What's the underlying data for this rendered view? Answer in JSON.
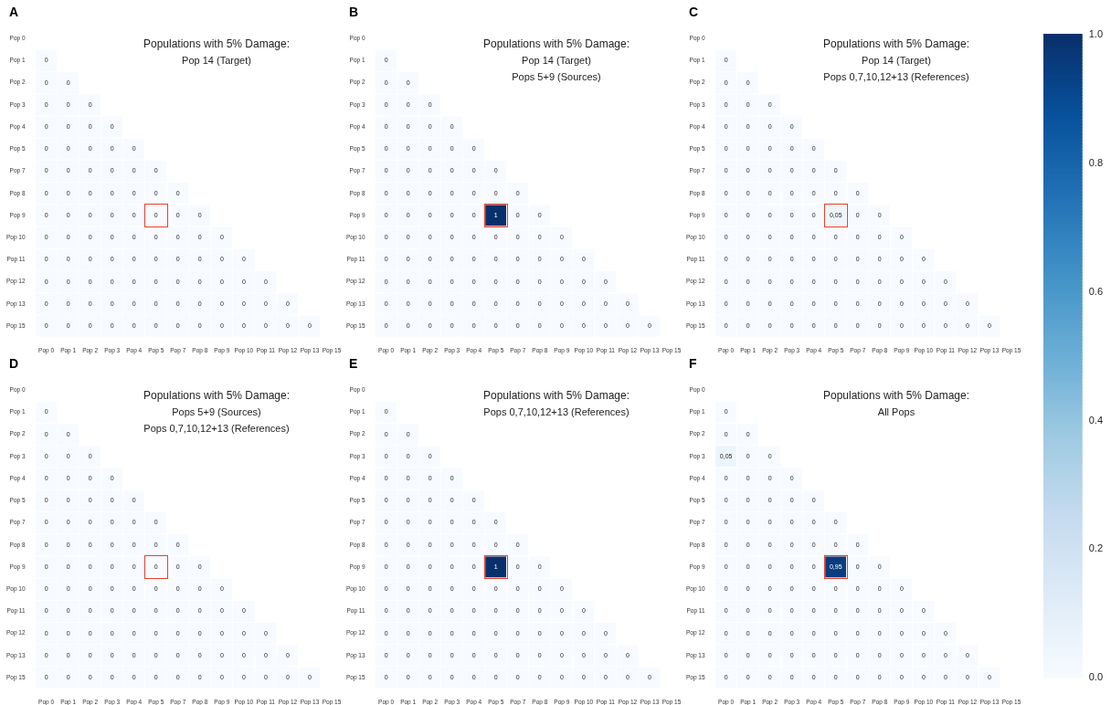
{
  "chart_data": [
    {
      "type": "heatmap",
      "annotations": [
        "A"
      ],
      "title": "Populations with 5% Damage:",
      "subtitle": "Pop 14 (Target)",
      "categories": [
        "Pop 0",
        "Pop 1",
        "Pop 2",
        "Pop 3",
        "Pop 4",
        "Pop 5",
        "Pop 7",
        "Pop 8",
        "Pop 9",
        "Pop 10",
        "Pop 11",
        "Pop 12",
        "Pop 13",
        "Pop 15"
      ],
      "y_categories": [
        "Pop 0",
        "Pop 1",
        "Pop 2",
        "Pop 3",
        "Pop 4",
        "Pop 5",
        "Pop 7",
        "Pop 8",
        "Pop 9",
        "Pop 10",
        "Pop 11",
        "Pop 12",
        "Pop 13",
        "Pop 15"
      ],
      "data_labels": true,
      "cells": [
        [
          null,
          null,
          null,
          null,
          null,
          null,
          null,
          null,
          null,
          null,
          null,
          null,
          null,
          null
        ],
        [
          0,
          null,
          null,
          null,
          null,
          null,
          null,
          null,
          null,
          null,
          null,
          null,
          null,
          null
        ],
        [
          0,
          0,
          null,
          null,
          null,
          null,
          null,
          null,
          null,
          null,
          null,
          null,
          null,
          null
        ],
        [
          0,
          0,
          0,
          null,
          null,
          null,
          null,
          null,
          null,
          null,
          null,
          null,
          null,
          null
        ],
        [
          0,
          0,
          0,
          0,
          null,
          null,
          null,
          null,
          null,
          null,
          null,
          null,
          null,
          null
        ],
        [
          0,
          0,
          0,
          0,
          0,
          null,
          null,
          null,
          null,
          null,
          null,
          null,
          null,
          null
        ],
        [
          0,
          0,
          0,
          0,
          0,
          0,
          null,
          null,
          null,
          null,
          null,
          null,
          null,
          null
        ],
        [
          0,
          0,
          0,
          0,
          0,
          0,
          0,
          null,
          null,
          null,
          null,
          null,
          null,
          null
        ],
        [
          0,
          0,
          0,
          0,
          0,
          0,
          0,
          0,
          null,
          null,
          null,
          null,
          null,
          null
        ],
        [
          0,
          0,
          0,
          0,
          0,
          0,
          0,
          0,
          0,
          null,
          null,
          null,
          null,
          null
        ],
        [
          0,
          0,
          0,
          0,
          0,
          0,
          0,
          0,
          0,
          0,
          null,
          null,
          null,
          null
        ],
        [
          0,
          0,
          0,
          0,
          0,
          0,
          0,
          0,
          0,
          0,
          0,
          null,
          null,
          null
        ],
        [
          0,
          0,
          0,
          0,
          0,
          0,
          0,
          0,
          0,
          0,
          0,
          0,
          null,
          null
        ],
        [
          0,
          0,
          0,
          0,
          0,
          0,
          0,
          0,
          0,
          0,
          0,
          0,
          0,
          null
        ]
      ]
    },
    {
      "type": "heatmap",
      "annotations": [
        "B"
      ],
      "title": "Populations with 5% Damage:",
      "subtitle": "Pop 14 (Target)\nPops 5+9 (Sources)",
      "categories": [
        "Pop 0",
        "Pop 1",
        "Pop 2",
        "Pop 3",
        "Pop 4",
        "Pop 5",
        "Pop 7",
        "Pop 8",
        "Pop 9",
        "Pop 10",
        "Pop 11",
        "Pop 12",
        "Pop 13",
        "Pop 15"
      ],
      "y_categories": [
        "Pop 0",
        "Pop 1",
        "Pop 2",
        "Pop 3",
        "Pop 4",
        "Pop 5",
        "Pop 7",
        "Pop 8",
        "Pop 9",
        "Pop 10",
        "Pop 11",
        "Pop 12",
        "Pop 13",
        "Pop 15"
      ],
      "data_labels": true,
      "cells": [
        [
          null,
          null,
          null,
          null,
          null,
          null,
          null,
          null,
          null,
          null,
          null,
          null,
          null,
          null
        ],
        [
          0,
          null,
          null,
          null,
          null,
          null,
          null,
          null,
          null,
          null,
          null,
          null,
          null,
          null
        ],
        [
          0,
          0,
          null,
          null,
          null,
          null,
          null,
          null,
          null,
          null,
          null,
          null,
          null,
          null
        ],
        [
          0,
          0,
          0,
          null,
          null,
          null,
          null,
          null,
          null,
          null,
          null,
          null,
          null,
          null
        ],
        [
          0,
          0,
          0,
          0,
          null,
          null,
          null,
          null,
          null,
          null,
          null,
          null,
          null,
          null
        ],
        [
          0,
          0,
          0,
          0,
          0,
          null,
          null,
          null,
          null,
          null,
          null,
          null,
          null,
          null
        ],
        [
          0,
          0,
          0,
          0,
          0,
          0,
          null,
          null,
          null,
          null,
          null,
          null,
          null,
          null
        ],
        [
          0,
          0,
          0,
          0,
          0,
          0,
          0,
          null,
          null,
          null,
          null,
          null,
          null,
          null
        ],
        [
          0,
          0,
          0,
          0,
          0,
          1,
          0,
          0,
          null,
          null,
          null,
          null,
          null,
          null
        ],
        [
          0,
          0,
          0,
          0,
          0,
          0,
          0,
          0,
          0,
          null,
          null,
          null,
          null,
          null
        ],
        [
          0,
          0,
          0,
          0,
          0,
          0,
          0,
          0,
          0,
          0,
          null,
          null,
          null,
          null
        ],
        [
          0,
          0,
          0,
          0,
          0,
          0,
          0,
          0,
          0,
          0,
          0,
          null,
          null,
          null
        ],
        [
          0,
          0,
          0,
          0,
          0,
          0,
          0,
          0,
          0,
          0,
          0,
          0,
          null,
          null
        ],
        [
          0,
          0,
          0,
          0,
          0,
          0,
          0,
          0,
          0,
          0,
          0,
          0,
          0,
          null
        ]
      ]
    },
    {
      "type": "heatmap",
      "annotations": [
        "C"
      ],
      "title": "Populations with 5% Damage:",
      "subtitle": "Pop 14 (Target)\nPops 0,7,10,12+13 (References)",
      "categories": [
        "Pop 0",
        "Pop 1",
        "Pop 2",
        "Pop 3",
        "Pop 4",
        "Pop 5",
        "Pop 7",
        "Pop 8",
        "Pop 9",
        "Pop 10",
        "Pop 11",
        "Pop 12",
        "Pop 13",
        "Pop 15"
      ],
      "y_categories": [
        "Pop 0",
        "Pop 1",
        "Pop 2",
        "Pop 3",
        "Pop 4",
        "Pop 5",
        "Pop 7",
        "Pop 8",
        "Pop 9",
        "Pop 10",
        "Pop 11",
        "Pop 12",
        "Pop 13",
        "Pop 15"
      ],
      "clim": [
        0,
        1
      ],
      "cticks": [
        {
          "value": 0,
          "label": "0.0"
        },
        {
          "value": 0.2,
          "label": "0.2"
        },
        {
          "value": 0.4,
          "label": "0.4"
        },
        {
          "value": 0.6,
          "label": "0.6"
        },
        {
          "value": 0.8,
          "label": "0.8"
        },
        {
          "value": 1,
          "label": "1.0"
        }
      ],
      "cells": [
        [
          null,
          null,
          null,
          null,
          null,
          null,
          null,
          null,
          null,
          null,
          null,
          null,
          null,
          null
        ],
        [
          0,
          null,
          null,
          null,
          null,
          null,
          null,
          null,
          null,
          null,
          null,
          null,
          null,
          null
        ],
        [
          0,
          0,
          null,
          null,
          null,
          null,
          null,
          null,
          null,
          null,
          null,
          null,
          null,
          null
        ],
        [
          0,
          0,
          0,
          null,
          null,
          null,
          null,
          null,
          null,
          null,
          null,
          null,
          null,
          null
        ],
        [
          0,
          0,
          0,
          0,
          null,
          null,
          null,
          null,
          null,
          null,
          null,
          null,
          null,
          null
        ],
        [
          0,
          0,
          0,
          0,
          0,
          null,
          null,
          null,
          null,
          null,
          null,
          null,
          null,
          null
        ],
        [
          0,
          0,
          0,
          0,
          0,
          0,
          null,
          null,
          null,
          null,
          null,
          null,
          null,
          null
        ],
        [
          0,
          0,
          0,
          0,
          0,
          0,
          0,
          null,
          null,
          null,
          null,
          null,
          null,
          null
        ],
        [
          0,
          0,
          0,
          0,
          0,
          0.05,
          0,
          0,
          null,
          null,
          null,
          null,
          null,
          null
        ],
        [
          0,
          0,
          0,
          0,
          0,
          0,
          0,
          0,
          0,
          null,
          null,
          null,
          null,
          null
        ],
        [
          0,
          0,
          0,
          0,
          0,
          0,
          0,
          0,
          0,
          0,
          null,
          null,
          null,
          null
        ],
        [
          0,
          0,
          0,
          0,
          0,
          0,
          0,
          0,
          0,
          0,
          0,
          null,
          null,
          null
        ],
        [
          0,
          0,
          0,
          0,
          0,
          0,
          0,
          0,
          0,
          0,
          0,
          0,
          null,
          null
        ],
        [
          0,
          0,
          0,
          0,
          0,
          0,
          0,
          0,
          0,
          0,
          0,
          0,
          0,
          null
        ]
      ],
      "cell_labels": [
        [
          null,
          null,
          null,
          null,
          null,
          null,
          null,
          null,
          null,
          null,
          null,
          null,
          null,
          null
        ],
        [
          "0",
          null,
          null,
          null,
          null,
          null,
          null,
          null,
          null,
          null,
          null,
          null,
          null,
          null
        ],
        [
          "0",
          "0",
          null,
          null,
          null,
          null,
          null,
          null,
          null,
          null,
          null,
          null,
          null,
          null
        ],
        [
          "0",
          "0",
          "0",
          null,
          null,
          null,
          null,
          null,
          null,
          null,
          null,
          null,
          null,
          null
        ],
        [
          "0",
          "0",
          "0",
          "0",
          null,
          null,
          null,
          null,
          null,
          null,
          null,
          null,
          null,
          null
        ],
        [
          "0",
          "0",
          "0",
          "0",
          "0",
          null,
          null,
          null,
          null,
          null,
          null,
          null,
          null,
          null
        ],
        [
          "0",
          "0",
          "0",
          "0",
          "0",
          "0",
          null,
          null,
          null,
          null,
          null,
          null,
          null,
          null
        ],
        [
          "0",
          "0",
          "0",
          "0",
          "0",
          "0",
          "0",
          null,
          null,
          null,
          null,
          null,
          null,
          null
        ],
        [
          "0",
          "0",
          "0",
          "0",
          "0",
          "0,05",
          "0",
          "0",
          null,
          null,
          null,
          null,
          null,
          null
        ],
        [
          "0",
          "0",
          "0",
          "0",
          "0",
          "0",
          "0",
          "0",
          "0",
          null,
          null,
          null,
          null,
          null
        ],
        [
          "0",
          "0",
          "0",
          "0",
          "0",
          "0",
          "0",
          "0",
          "0",
          "0",
          null,
          null,
          null,
          null
        ],
        [
          "0",
          "0",
          "0",
          "0",
          "0",
          "0",
          "0",
          "0",
          "0",
          "0",
          "0",
          null,
          null,
          null
        ],
        [
          "0",
          "0",
          "0",
          "0",
          "0",
          "0",
          "0",
          "0",
          "0",
          "0",
          "0",
          "0",
          null,
          null
        ],
        [
          "0",
          "0",
          "0",
          "0",
          "0",
          "0",
          "0",
          "0",
          "0",
          "0",
          "0",
          "0",
          "0",
          null
        ]
      ]
    },
    {
      "type": "heatmap",
      "annotations": [
        "D"
      ],
      "title": "Populations with 5% Damage:",
      "subtitle": "Pops 5+9 (Sources)\nPops 0,7,10,12+13 (References)",
      "categories": [
        "Pop 0",
        "Pop 1",
        "Pop 2",
        "Pop 3",
        "Pop 4",
        "Pop 5",
        "Pop 7",
        "Pop 8",
        "Pop 9",
        "Pop 10",
        "Pop 11",
        "Pop 12",
        "Pop 13",
        "Pop 15"
      ],
      "y_categories": [
        "Pop 0",
        "Pop 1",
        "Pop 2",
        "Pop 3",
        "Pop 4",
        "Pop 5",
        "Pop 7",
        "Pop 8",
        "Pop 9",
        "Pop 10",
        "Pop 11",
        "Pop 12",
        "Pop 13",
        "Pop 15"
      ],
      "data_labels": true,
      "cells": [
        [
          null,
          null,
          null,
          null,
          null,
          null,
          null,
          null,
          null,
          null,
          null,
          null,
          null,
          null
        ],
        [
          0,
          null,
          null,
          null,
          null,
          null,
          null,
          null,
          null,
          null,
          null,
          null,
          null,
          null
        ],
        [
          0,
          0,
          null,
          null,
          null,
          null,
          null,
          null,
          null,
          null,
          null,
          null,
          null,
          null
        ],
        [
          0,
          0,
          0,
          null,
          null,
          null,
          null,
          null,
          null,
          null,
          null,
          null,
          null,
          null
        ],
        [
          0,
          0,
          0,
          0,
          null,
          null,
          null,
          null,
          null,
          null,
          null,
          null,
          null,
          null
        ],
        [
          0,
          0,
          0,
          0,
          0,
          null,
          null,
          null,
          null,
          null,
          null,
          null,
          null,
          null
        ],
        [
          0,
          0,
          0,
          0,
          0,
          0,
          null,
          null,
          null,
          null,
          null,
          null,
          null,
          null
        ],
        [
          0,
          0,
          0,
          0,
          0,
          0,
          0,
          null,
          null,
          null,
          null,
          null,
          null,
          null
        ],
        [
          0,
          0,
          0,
          0,
          0,
          0,
          0,
          0,
          null,
          null,
          null,
          null,
          null,
          null
        ],
        [
          0,
          0,
          0,
          0,
          0,
          0,
          0,
          0,
          0,
          null,
          null,
          null,
          null,
          null
        ],
        [
          0,
          0,
          0,
          0,
          0,
          0,
          0,
          0,
          0,
          0,
          null,
          null,
          null,
          null
        ],
        [
          0,
          0,
          0,
          0,
          0,
          0,
          0,
          0,
          0,
          0,
          0,
          null,
          null,
          null
        ],
        [
          0,
          0,
          0,
          0,
          0,
          0,
          0,
          0,
          0,
          0,
          0,
          0,
          null,
          null
        ],
        [
          0,
          0,
          0,
          0,
          0,
          0,
          0,
          0,
          0,
          0,
          0,
          0,
          0,
          null
        ]
      ]
    },
    {
      "type": "heatmap",
      "annotations": [
        "E"
      ],
      "title": "Populations with 5% Damage:",
      "subtitle": "Pops 0,7,10,12+13 (References)",
      "categories": [
        "Pop 0",
        "Pop 1",
        "Pop 2",
        "Pop 3",
        "Pop 4",
        "Pop 5",
        "Pop 7",
        "Pop 8",
        "Pop 9",
        "Pop 10",
        "Pop 11",
        "Pop 12",
        "Pop 13",
        "Pop 15"
      ],
      "y_categories": [
        "Pop 0",
        "Pop 1",
        "Pop 2",
        "Pop 3",
        "Pop 4",
        "Pop 5",
        "Pop 7",
        "Pop 8",
        "Pop 9",
        "Pop 10",
        "Pop 11",
        "Pop 12",
        "Pop 13",
        "Pop 15"
      ],
      "data_labels": true,
      "cells": [
        [
          null,
          null,
          null,
          null,
          null,
          null,
          null,
          null,
          null,
          null,
          null,
          null,
          null,
          null
        ],
        [
          0,
          null,
          null,
          null,
          null,
          null,
          null,
          null,
          null,
          null,
          null,
          null,
          null,
          null
        ],
        [
          0,
          0,
          null,
          null,
          null,
          null,
          null,
          null,
          null,
          null,
          null,
          null,
          null,
          null
        ],
        [
          0,
          0,
          0,
          null,
          null,
          null,
          null,
          null,
          null,
          null,
          null,
          null,
          null,
          null
        ],
        [
          0,
          0,
          0,
          0,
          null,
          null,
          null,
          null,
          null,
          null,
          null,
          null,
          null,
          null
        ],
        [
          0,
          0,
          0,
          0,
          0,
          null,
          null,
          null,
          null,
          null,
          null,
          null,
          null,
          null
        ],
        [
          0,
          0,
          0,
          0,
          0,
          0,
          null,
          null,
          null,
          null,
          null,
          null,
          null,
          null
        ],
        [
          0,
          0,
          0,
          0,
          0,
          0,
          0,
          null,
          null,
          null,
          null,
          null,
          null,
          null
        ],
        [
          0,
          0,
          0,
          0,
          0,
          1,
          0,
          0,
          null,
          null,
          null,
          null,
          null,
          null
        ],
        [
          0,
          0,
          0,
          0,
          0,
          0,
          0,
          0,
          0,
          null,
          null,
          null,
          null,
          null
        ],
        [
          0,
          0,
          0,
          0,
          0,
          0,
          0,
          0,
          0,
          0,
          null,
          null,
          null,
          null
        ],
        [
          0,
          0,
          0,
          0,
          0,
          0,
          0,
          0,
          0,
          0,
          0,
          null,
          null,
          null
        ],
        [
          0,
          0,
          0,
          0,
          0,
          0,
          0,
          0,
          0,
          0,
          0,
          0,
          null,
          null
        ],
        [
          0,
          0,
          0,
          0,
          0,
          0,
          0,
          0,
          0,
          0,
          0,
          0,
          0,
          null
        ]
      ]
    },
    {
      "type": "heatmap",
      "annotations": [
        "F"
      ],
      "title": "Populations with 5% Damage:",
      "subtitle": "All Pops",
      "categories": [
        "Pop 0",
        "Pop 1",
        "Pop 2",
        "Pop 3",
        "Pop 4",
        "Pop 5",
        "Pop 7",
        "Pop 8",
        "Pop 9",
        "Pop 10",
        "Pop 11",
        "Pop 12",
        "Pop 13",
        "Pop 15"
      ],
      "y_categories": [
        "Pop 0",
        "Pop 1",
        "Pop 2",
        "Pop 3",
        "Pop 4",
        "Pop 5",
        "Pop 7",
        "Pop 8",
        "Pop 9",
        "Pop 10",
        "Pop 11",
        "Pop 12",
        "Pop 13",
        "Pop 15"
      ],
      "cells": [
        [
          null,
          null,
          null,
          null,
          null,
          null,
          null,
          null,
          null,
          null,
          null,
          null,
          null,
          null
        ],
        [
          0,
          null,
          null,
          null,
          null,
          null,
          null,
          null,
          null,
          null,
          null,
          null,
          null,
          null
        ],
        [
          0,
          0,
          null,
          null,
          null,
          null,
          null,
          null,
          null,
          null,
          null,
          null,
          null,
          null
        ],
        [
          0.05,
          0,
          0,
          null,
          null,
          null,
          null,
          null,
          null,
          null,
          null,
          null,
          null,
          null
        ],
        [
          0,
          0,
          0,
          0,
          null,
          null,
          null,
          null,
          null,
          null,
          null,
          null,
          null,
          null
        ],
        [
          0,
          0,
          0,
          0,
          0,
          null,
          null,
          null,
          null,
          null,
          null,
          null,
          null,
          null
        ],
        [
          0,
          0,
          0,
          0,
          0,
          0,
          null,
          null,
          null,
          null,
          null,
          null,
          null,
          null
        ],
        [
          0,
          0,
          0,
          0,
          0,
          0,
          0,
          null,
          null,
          null,
          null,
          null,
          null,
          null
        ],
        [
          0,
          0,
          0,
          0,
          0,
          0.95,
          0,
          0,
          null,
          null,
          null,
          null,
          null,
          null
        ],
        [
          0,
          0,
          0,
          0,
          0,
          0,
          0,
          0,
          0,
          null,
          null,
          null,
          null,
          null
        ],
        [
          0,
          0,
          0,
          0,
          0,
          0,
          0,
          0,
          0,
          0,
          null,
          null,
          null,
          null
        ],
        [
          0,
          0,
          0,
          0,
          0,
          0,
          0,
          0,
          0,
          0,
          0,
          null,
          null,
          null
        ],
        [
          0,
          0,
          0,
          0,
          0,
          0,
          0,
          0,
          0,
          0,
          0,
          0,
          null,
          null
        ],
        [
          0,
          0,
          0,
          0,
          0,
          0,
          0,
          0,
          0,
          0,
          0,
          0,
          0,
          null
        ]
      ],
      "cell_labels": [
        [
          null,
          null,
          null,
          null,
          null,
          null,
          null,
          null,
          null,
          null,
          null,
          null,
          null,
          null
        ],
        [
          "0",
          null,
          null,
          null,
          null,
          null,
          null,
          null,
          null,
          null,
          null,
          null,
          null,
          null
        ],
        [
          "0",
          "0",
          null,
          null,
          null,
          null,
          null,
          null,
          null,
          null,
          null,
          null,
          null,
          null
        ],
        [
          "0,05",
          "0",
          "0",
          null,
          null,
          null,
          null,
          null,
          null,
          null,
          null,
          null,
          null,
          null
        ],
        [
          "0",
          "0",
          "0",
          "0",
          null,
          null,
          null,
          null,
          null,
          null,
          null,
          null,
          null,
          null
        ],
        [
          "0",
          "0",
          "0",
          "0",
          "0",
          null,
          null,
          null,
          null,
          null,
          null,
          null,
          null,
          null
        ],
        [
          "0",
          "0",
          "0",
          "0",
          "0",
          "0",
          null,
          null,
          null,
          null,
          null,
          null,
          null,
          null
        ],
        [
          "0",
          "0",
          "0",
          "0",
          "0",
          "0",
          "0",
          null,
          null,
          null,
          null,
          null,
          null,
          null
        ],
        [
          "0",
          "0",
          "0",
          "0",
          "0",
          "0,95",
          "0",
          "0",
          null,
          null,
          null,
          null,
          null,
          null
        ],
        [
          "0",
          "0",
          "0",
          "0",
          "0",
          "0",
          "0",
          "0",
          "0",
          null,
          null,
          null,
          null,
          null
        ],
        [
          "0",
          "0",
          "0",
          "0",
          "0",
          "0",
          "0",
          "0",
          "0",
          "0",
          null,
          null,
          null,
          null
        ],
        [
          "0",
          "0",
          "0",
          "0",
          "0",
          "0",
          "0",
          "0",
          "0",
          "0",
          "0",
          null,
          null,
          null
        ],
        [
          "0",
          "0",
          "0",
          "0",
          "0",
          "0",
          "0",
          "0",
          "0",
          "0",
          "0",
          "0",
          null,
          null
        ],
        [
          "0",
          "0",
          "0",
          "0",
          "0",
          "0",
          "0",
          "0",
          "0",
          "0",
          "0",
          "0",
          "0",
          null
        ]
      ]
    }
  ]
}
